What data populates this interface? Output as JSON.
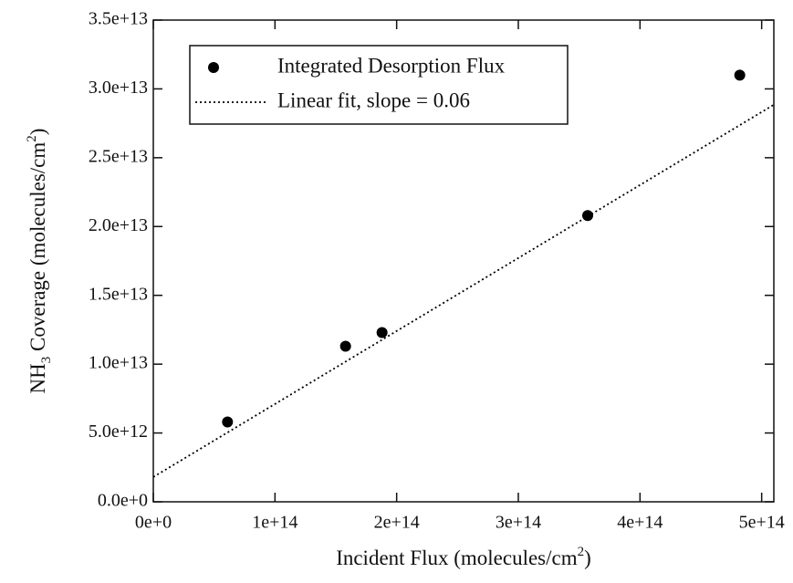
{
  "chart_data": {
    "type": "scatter",
    "xlabel": [
      "Incident Flux (molecules/cm",
      "2",
      ")"
    ],
    "ylabel": [
      "NH",
      "3",
      " Coverage (molecules/cm",
      "2",
      ")"
    ],
    "series": [
      {
        "name": "Integrated Desorption Flux",
        "kind": "points",
        "color": "#000000",
        "x": [
          61000000000000.0,
          158000000000000.0,
          188000000000000.0,
          357000000000000.0,
          482000000000000.0
        ],
        "values": [
          5800000000000.0,
          11300000000000.0,
          12300000000000.0,
          20800000000000.0,
          31000000000000.0
        ]
      },
      {
        "name": "Linear fit, slope = 0.06",
        "kind": "dotted-line",
        "color": "#000000",
        "x": [
          0,
          510000000000000.0
        ],
        "values": [
          1800000000000.0,
          28850000000000.0
        ]
      }
    ],
    "xlim": [
      0,
      510000000000000.0
    ],
    "ylim": [
      0,
      35000000000000.0
    ],
    "xticks": [
      {
        "value": 0,
        "label": "0e+0"
      },
      {
        "value": 100000000000000.0,
        "label": "1e+14"
      },
      {
        "value": 200000000000000.0,
        "label": "2e+14"
      },
      {
        "value": 300000000000000.0,
        "label": "3e+14"
      },
      {
        "value": 400000000000000.0,
        "label": "4e+14"
      },
      {
        "value": 500000000000000.0,
        "label": "5e+14"
      }
    ],
    "yticks": [
      {
        "value": 0,
        "label": "0.0e+0"
      },
      {
        "value": 5000000000000.0,
        "label": "5.0e+12"
      },
      {
        "value": 10000000000000.0,
        "label": "1.0e+13"
      },
      {
        "value": 15000000000000.0,
        "label": "1.5e+13"
      },
      {
        "value": 20000000000000.0,
        "label": "2.0e+13"
      },
      {
        "value": 25000000000000.0,
        "label": "2.5e+13"
      },
      {
        "value": 30000000000000.0,
        "label": "3.0e+13"
      },
      {
        "value": 35000000000000.0,
        "label": "3.5e+13"
      }
    ],
    "grid": false,
    "legend": "upper-left"
  }
}
